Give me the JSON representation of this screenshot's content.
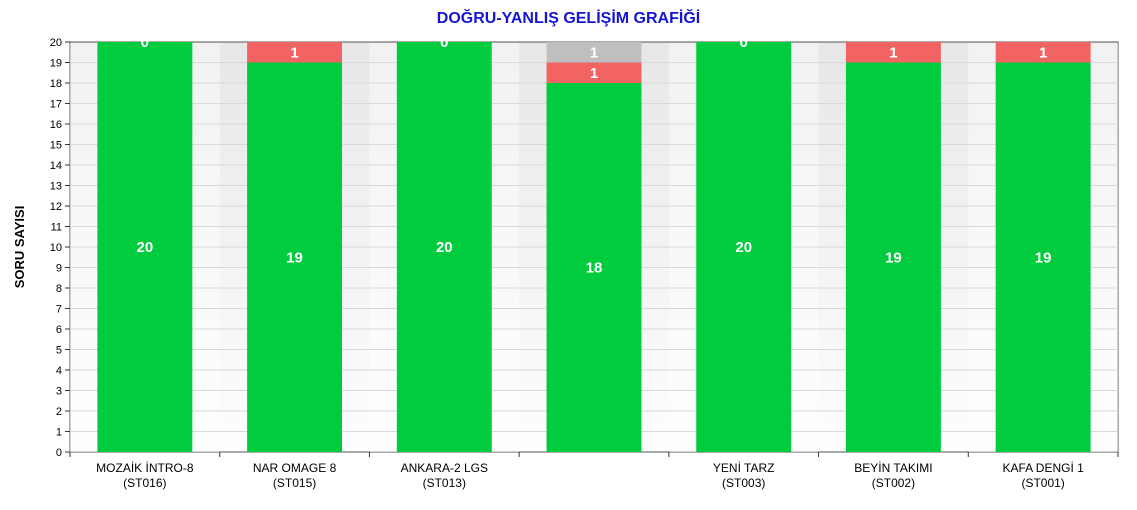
{
  "chart_data": {
    "type": "bar",
    "stacked": true,
    "title": "DOĞRU-YANLIŞ GELİŞİM GRAFİĞİ",
    "ylabel": "SORU SAYISI",
    "xlabel": "",
    "ylim": [
      0,
      20
    ],
    "yticks": [
      0,
      1,
      2,
      3,
      4,
      5,
      6,
      7,
      8,
      9,
      10,
      11,
      12,
      13,
      14,
      15,
      16,
      17,
      18,
      19,
      20
    ],
    "categories": [
      [
        "MOZAİK İNTRO-8",
        "(ST016)"
      ],
      [
        "NAR OMAGE 8",
        "(ST015)"
      ],
      [
        "ANKARA-2 LGS",
        "(ST013)"
      ],
      [
        "",
        ""
      ],
      [
        "YENİ TARZ",
        "(ST003)"
      ],
      [
        "BEYİN TAKIMI",
        "(ST002)"
      ],
      [
        "KAFA DENGİ 1",
        "(ST001)"
      ]
    ],
    "series": [
      {
        "values": [
          20,
          19,
          20,
          18,
          20,
          19,
          19
        ],
        "color": "#00cc3d"
      },
      {
        "values": [
          0,
          1,
          0,
          1,
          0,
          1,
          1
        ],
        "color": "#f26363"
      },
      {
        "values": [
          0,
          0,
          0,
          1,
          0,
          0,
          0
        ],
        "color": "#bfbfbf"
      }
    ],
    "grid": true,
    "legend": false
  }
}
